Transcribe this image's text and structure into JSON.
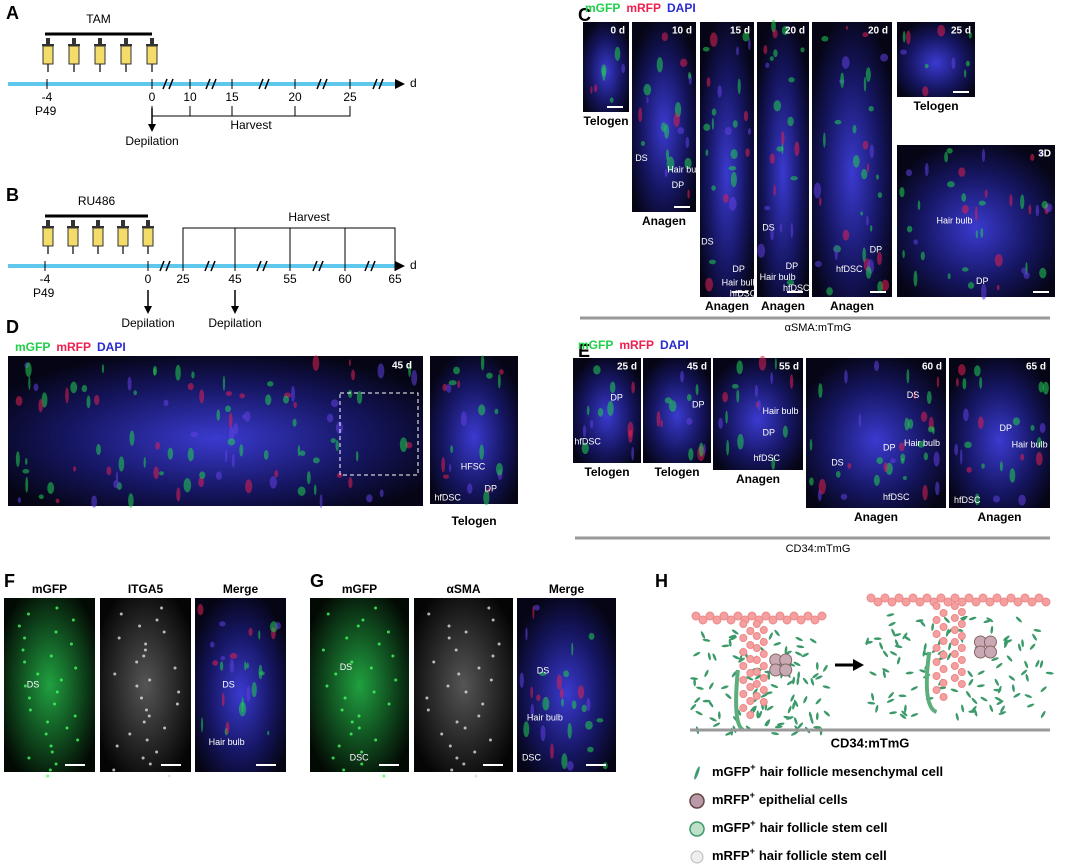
{
  "panels": {
    "a": {
      "label": "A",
      "drug": "TAM",
      "unit": "d",
      "ticks": [
        "-4",
        "0",
        "10",
        "15",
        "20",
        "25"
      ],
      "age": "P49",
      "harvest": "Harvest",
      "depilation": "Depilation"
    },
    "b": {
      "label": "B",
      "drug": "RU486",
      "unit": "d",
      "ticks": [
        "-4",
        "0",
        "25",
        "45",
        "55",
        "60",
        "65"
      ],
      "age": "P49",
      "harvest": "Harvest",
      "depilations": [
        "Depilation",
        "Depilation"
      ]
    },
    "c": {
      "label": "C",
      "stains": [
        "mGFP",
        "mRFP",
        "DAPI"
      ],
      "images": [
        {
          "time": "0 d",
          "stage": "Telogen"
        },
        {
          "time": "10 d",
          "stage": "Anagen",
          "marks": [
            "DS",
            "Hair bulb",
            "DP"
          ]
        },
        {
          "time": "15 d",
          "stage": "Anagen",
          "marks": [
            "DS",
            "DP",
            "Hair bulb",
            "hfDSC"
          ]
        },
        {
          "time": "20 d",
          "stage": "Anagen",
          "marks": [
            "DS",
            "DP",
            "Hair bulb",
            "hfDSC"
          ]
        },
        {
          "time": "20 d",
          "stage": "Anagen",
          "marks": [
            "DP",
            "hfDSC"
          ]
        },
        {
          "time": "25 d",
          "stage": "Telogen"
        },
        {
          "time": "3D",
          "marks": [
            "Hair bulb",
            "DP"
          ]
        }
      ],
      "caption": "αSMA:mTmG"
    },
    "d": {
      "label": "D",
      "stains": [
        "mGFP",
        "mRFP",
        "DAPI"
      ],
      "time": "45 d",
      "zoom": {
        "marks": [
          "HFSC",
          "hfDSC",
          "DP"
        ],
        "stage": "Telogen"
      }
    },
    "e": {
      "label": "E",
      "stains": [
        "mGFP",
        "mRFP",
        "DAPI"
      ],
      "images": [
        {
          "time": "25 d",
          "stage": "Telogen",
          "marks": [
            "DP",
            "hfDSC"
          ]
        },
        {
          "time": "45 d",
          "stage": "Telogen",
          "marks": [
            "DP"
          ]
        },
        {
          "time": "55 d",
          "stage": "Anagen",
          "marks": [
            "Hair bulb",
            "DP",
            "hfDSC"
          ]
        },
        {
          "time": "60 d",
          "stage": "Anagen",
          "marks": [
            "DS",
            "DS",
            "Hair bulb",
            "DP",
            "hfDSC"
          ]
        },
        {
          "time": "65 d",
          "stage": "Anagen",
          "marks": [
            "DP",
            "Hair bulb",
            "hfDSC"
          ]
        }
      ],
      "caption": "CD34:mTmG"
    },
    "f": {
      "label": "F",
      "images": [
        {
          "title": "mGFP",
          "marks": [
            "DS"
          ]
        },
        {
          "title": "ITGA5"
        },
        {
          "title": "Merge",
          "marks": [
            "DS",
            "Hair bulb"
          ]
        }
      ]
    },
    "g": {
      "label": "G",
      "images": [
        {
          "title": "mGFP",
          "marks": [
            "DS",
            "DSC"
          ]
        },
        {
          "title": "αSMA"
        },
        {
          "title": "Merge",
          "marks": [
            "DS",
            "Hair bulb",
            "DSC"
          ]
        }
      ]
    },
    "h": {
      "label": "H",
      "caption": "CD34:mTmG",
      "legend": [
        {
          "marker": "mGFP",
          "sup": "+",
          "text": "hair follicle mesenchymal cell"
        },
        {
          "marker": "mRFP",
          "sup": "+",
          "text": "epithelial cells"
        },
        {
          "marker": "mGFP",
          "sup": "+",
          "text": "hair follicle stem cell"
        },
        {
          "marker": "mRFP",
          "sup": "+",
          "text": "hair follicle stem cell"
        }
      ]
    }
  }
}
